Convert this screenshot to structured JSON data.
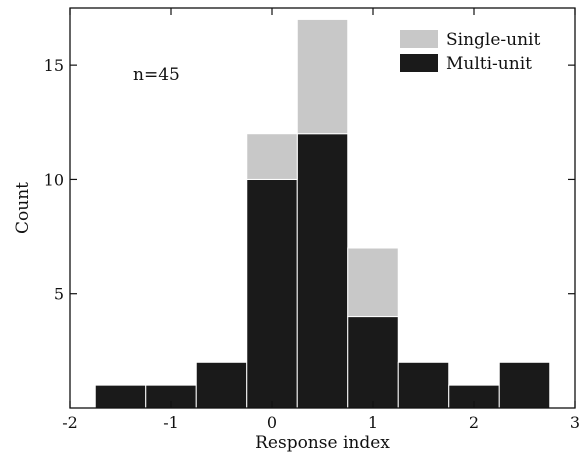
{
  "chart_data": {
    "type": "bar",
    "stacked": true,
    "title": "",
    "xlabel": "Response index",
    "ylabel": "Count",
    "xlim": [
      -2,
      3
    ],
    "ylim": [
      0,
      17.5
    ],
    "xticks": [
      -2,
      -1,
      0,
      1,
      2,
      3
    ],
    "yticks": [
      5,
      10,
      15
    ],
    "bin_edges": [
      -1.75,
      -1.25,
      -0.75,
      -0.25,
      0.25,
      0.75,
      1.25,
      1.75,
      2.25,
      2.75
    ],
    "series": [
      {
        "name": "Multi-unit",
        "color": "#1a1a1a",
        "values": [
          1,
          1,
          2,
          10,
          12,
          4,
          2,
          1,
          2
        ]
      },
      {
        "name": "Single-unit",
        "color": "#c8c8c8",
        "values": [
          0,
          0,
          0,
          2,
          5,
          3,
          0,
          0,
          0
        ]
      }
    ],
    "legend": {
      "position": "top-right",
      "entries": [
        "Single-unit",
        "Multi-unit"
      ]
    },
    "annotation": "n=45",
    "grid": false
  }
}
